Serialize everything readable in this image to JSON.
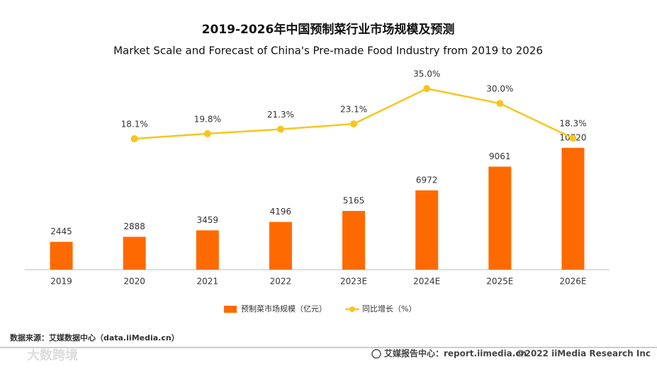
{
  "chart_data": {
    "type": "bar",
    "title": "2019-2026年中国预制菜行业市场规模及预测",
    "subtitle": "Market Scale and Forecast of China's Pre-made Food Industry from 2019 to 2026",
    "categories": [
      "2019",
      "2020",
      "2021",
      "2022",
      "2023E",
      "2024E",
      "2025E",
      "2026E"
    ],
    "series": [
      {
        "name": "预制菜市场规模（亿元）",
        "type": "bar",
        "color": "#ff6a00",
        "values": [
          2445,
          2888,
          3459,
          4196,
          5165,
          6972,
          9061,
          10720
        ]
      },
      {
        "name": "同比增长（%）",
        "type": "line",
        "axis": "y2",
        "color": "#f7c520",
        "values": [
          null,
          18.1,
          19.8,
          21.3,
          23.1,
          35.0,
          30.0,
          18.3
        ],
        "value_labels": [
          null,
          "18.1%",
          "19.8%",
          "21.3%",
          "23.1%",
          "35.0%",
          "30.0%",
          "18.3%"
        ]
      }
    ],
    "ylim": [
      0,
      17500
    ],
    "y2lim": [
      -26,
      41
    ]
  },
  "footer": {
    "source": "数据来源：艾媒数据中心（data.iiMedia.cn）",
    "watermark": "大数跨境",
    "site": "艾媒报告中心：report.iimedia.cn",
    "copyright": "©2022  iiMedia Research  Inc"
  }
}
